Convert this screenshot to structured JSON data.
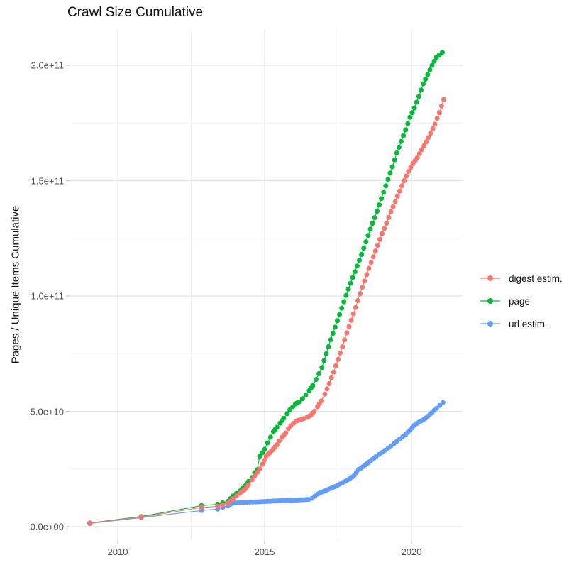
{
  "title": "Crawl Size Cumulative",
  "y_axis_title": "Pages / Unique Items Cumulative",
  "colors": {
    "background": "#ffffff",
    "grid_major": "#e4e4e4",
    "grid_minor": "#f2f2f2",
    "tick_mark": "#c4c4c4",
    "axis_text": "#4d4d4d",
    "title_text": "#111111"
  },
  "chart_data": {
    "type": "scatter",
    "title": "Crawl Size Cumulative",
    "xlabel": "",
    "ylabel": "Pages / Unique Items Cumulative",
    "legend_position": "right",
    "grid": "on",
    "x_axis": {
      "tick_values": [
        2010,
        2015,
        2020
      ],
      "tick_labels": [
        "2010",
        "2015",
        "2020"
      ],
      "minor_tick_values": [
        2012.5,
        2017.5
      ],
      "range": [
        2008.36,
        2021.74
      ]
    },
    "y_axis": {
      "unit": "items, values listed in billions (1e9)",
      "tick_values_e9": [
        0,
        50,
        100,
        150,
        200
      ],
      "tick_labels": [
        "0.0e+00",
        "5.0e+10",
        "1.0e+11",
        "1.5e+11",
        "2.0e+11"
      ],
      "minor_tick_values_e9": [
        25,
        75,
        125,
        175
      ],
      "range_e9": [
        -6.5,
        215.4
      ]
    },
    "draw_order": [
      1,
      2,
      0
    ],
    "series": [
      {
        "name": "digest estim.",
        "color": "#F8766D",
        "points": [
          [
            2009.05,
            1.5
          ],
          [
            2010.8,
            4.2
          ],
          [
            2012.85,
            8.3
          ],
          [
            2013.4,
            8.8
          ],
          [
            2013.75,
            10.2
          ],
          [
            2013.92,
            12.1
          ],
          [
            2014.16,
            14.5
          ],
          [
            2014.33,
            16.2
          ],
          [
            2014.45,
            18.2
          ],
          [
            2014.57,
            20.3
          ],
          [
            2014.66,
            22.0
          ],
          [
            2014.75,
            23.5
          ],
          [
            2014.83,
            25.0
          ],
          [
            2014.92,
            27.0
          ],
          [
            2015.05,
            30.5
          ],
          [
            2015.17,
            32.0
          ],
          [
            2015.3,
            33.7
          ],
          [
            2015.42,
            35.5
          ],
          [
            2015.5,
            37.2
          ],
          [
            2015.6,
            38.8
          ],
          [
            2015.72,
            40.6
          ],
          [
            2015.81,
            42.5
          ],
          [
            2015.89,
            43.7
          ],
          [
            2015.98,
            44.8
          ],
          [
            2016.08,
            45.8
          ],
          [
            2016.2,
            46.3
          ],
          [
            2016.33,
            46.8
          ],
          [
            2016.44,
            47.4
          ],
          [
            2016.57,
            48.3
          ],
          [
            2016.69,
            50.0
          ],
          [
            2016.8,
            52.0
          ],
          [
            2016.93,
            54.5
          ],
          [
            2017.05,
            57.5
          ],
          [
            2017.2,
            62.0
          ],
          [
            2017.35,
            67.0
          ],
          [
            2017.5,
            72.5
          ],
          [
            2017.65,
            78.0
          ],
          [
            2017.8,
            84.0
          ],
          [
            2017.95,
            89.5
          ],
          [
            2018.1,
            95.0
          ],
          [
            2018.25,
            101.0
          ],
          [
            2018.4,
            106.5
          ],
          [
            2018.55,
            112.0
          ],
          [
            2018.7,
            117.0
          ],
          [
            2018.85,
            122.0
          ],
          [
            2019.0,
            127.0
          ],
          [
            2019.15,
            131.5
          ],
          [
            2019.3,
            136.5
          ],
          [
            2019.45,
            141.0
          ],
          [
            2019.6,
            145.5
          ],
          [
            2019.75,
            150.0
          ],
          [
            2019.9,
            154.0
          ],
          [
            2020.05,
            157.5
          ],
          [
            2020.2,
            160.0
          ],
          [
            2020.35,
            163.5
          ],
          [
            2020.5,
            166.8
          ],
          [
            2020.65,
            170.5
          ],
          [
            2020.8,
            174.5
          ],
          [
            2020.95,
            179.5
          ],
          [
            2021.1,
            185.2
          ]
        ]
      },
      {
        "name": "page",
        "color": "#00BA38",
        "points": [
          [
            2009.05,
            1.6
          ],
          [
            2010.8,
            4.4
          ],
          [
            2012.85,
            9.1
          ],
          [
            2013.4,
            9.7
          ],
          [
            2013.75,
            11.0
          ],
          [
            2013.92,
            13.3
          ],
          [
            2014.16,
            15.5
          ],
          [
            2014.33,
            17.5
          ],
          [
            2014.45,
            19.6
          ],
          [
            2014.57,
            21.3
          ],
          [
            2014.66,
            23.4
          ],
          [
            2014.75,
            24.7
          ],
          [
            2014.83,
            30.5
          ],
          [
            2014.92,
            32.0
          ],
          [
            2015.0,
            33.5
          ],
          [
            2015.1,
            36.3
          ],
          [
            2015.2,
            38.8
          ],
          [
            2015.3,
            41.2
          ],
          [
            2015.42,
            43.1
          ],
          [
            2015.53,
            44.9
          ],
          [
            2015.65,
            47.0
          ],
          [
            2015.77,
            49.0
          ],
          [
            2015.86,
            50.7
          ],
          [
            2015.96,
            52.0
          ],
          [
            2016.05,
            53.2
          ],
          [
            2016.17,
            54.1
          ],
          [
            2016.29,
            55.5
          ],
          [
            2016.4,
            57.0
          ],
          [
            2016.52,
            59.0
          ],
          [
            2016.64,
            61.2
          ],
          [
            2016.75,
            63.8
          ],
          [
            2016.85,
            66.3
          ],
          [
            2016.95,
            69.0
          ],
          [
            2017.1,
            75.0
          ],
          [
            2017.25,
            81.0
          ],
          [
            2017.4,
            86.5
          ],
          [
            2017.55,
            92.0
          ],
          [
            2017.7,
            97.5
          ],
          [
            2017.85,
            103.0
          ],
          [
            2018.0,
            108.0
          ],
          [
            2018.15,
            113.0
          ],
          [
            2018.3,
            118.0
          ],
          [
            2018.45,
            123.5
          ],
          [
            2018.6,
            129.0
          ],
          [
            2018.75,
            134.0
          ],
          [
            2018.9,
            139.5
          ],
          [
            2019.05,
            145.0
          ],
          [
            2019.2,
            150.5
          ],
          [
            2019.35,
            156.0
          ],
          [
            2019.5,
            162.0
          ],
          [
            2019.65,
            167.0
          ],
          [
            2019.8,
            172.0
          ],
          [
            2019.95,
            177.5
          ],
          [
            2020.1,
            181.5
          ],
          [
            2020.25,
            186.5
          ],
          [
            2020.4,
            192.0
          ],
          [
            2020.55,
            196.0
          ],
          [
            2020.7,
            200.0
          ],
          [
            2020.85,
            203.5
          ],
          [
            2021.05,
            205.6
          ]
        ]
      },
      {
        "name": "url estim.",
        "color": "#619CFF",
        "points": [
          [
            2009.05,
            1.4
          ],
          [
            2010.8,
            3.9
          ],
          [
            2012.85,
            7.0
          ],
          [
            2013.4,
            7.6
          ],
          [
            2013.75,
            9.2
          ],
          [
            2013.92,
            10.2
          ],
          [
            2014.1,
            10.4
          ],
          [
            2014.3,
            10.5
          ],
          [
            2014.5,
            10.6
          ],
          [
            2014.7,
            10.7
          ],
          [
            2014.85,
            10.8
          ],
          [
            2015.0,
            10.9
          ],
          [
            2015.15,
            11.0
          ],
          [
            2015.3,
            11.1
          ],
          [
            2015.45,
            11.2
          ],
          [
            2015.6,
            11.3
          ],
          [
            2015.75,
            11.35
          ],
          [
            2015.9,
            11.4
          ],
          [
            2016.05,
            11.5
          ],
          [
            2016.2,
            11.6
          ],
          [
            2016.35,
            11.7
          ],
          [
            2016.5,
            11.8
          ],
          [
            2016.62,
            12.3
          ],
          [
            2016.72,
            13.3
          ],
          [
            2016.82,
            14.2
          ],
          [
            2016.95,
            15.0
          ],
          [
            2017.1,
            15.8
          ],
          [
            2017.25,
            16.6
          ],
          [
            2017.4,
            17.4
          ],
          [
            2017.57,
            18.5
          ],
          [
            2017.75,
            19.7
          ],
          [
            2017.9,
            20.8
          ],
          [
            2018.05,
            22.2
          ],
          [
            2018.2,
            24.8
          ],
          [
            2018.35,
            26.0
          ],
          [
            2018.5,
            27.5
          ],
          [
            2018.65,
            29.0
          ],
          [
            2018.8,
            30.5
          ],
          [
            2019.0,
            32.2
          ],
          [
            2019.2,
            34.0
          ],
          [
            2019.4,
            36.0
          ],
          [
            2019.6,
            38.0
          ],
          [
            2019.8,
            40.0
          ],
          [
            2019.95,
            41.8
          ],
          [
            2020.1,
            44.0
          ],
          [
            2020.25,
            45.3
          ],
          [
            2020.4,
            46.3
          ],
          [
            2020.55,
            47.8
          ],
          [
            2020.7,
            49.5
          ],
          [
            2020.85,
            51.3
          ],
          [
            2021.07,
            53.8
          ]
        ]
      }
    ]
  }
}
